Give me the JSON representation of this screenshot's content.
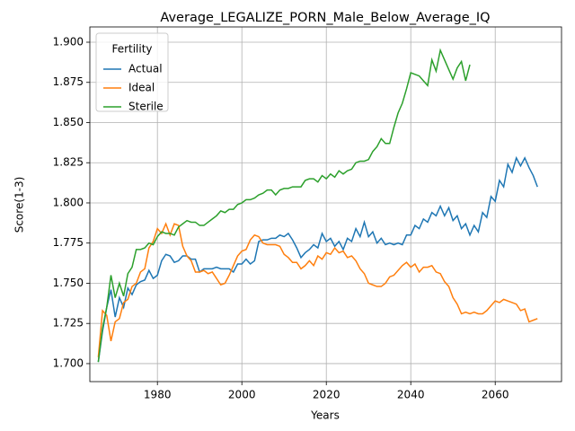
{
  "chart_data": {
    "type": "line",
    "title": "Average_LEGALIZE_PORN_Male_Below_Average_IQ",
    "x_label": "Years",
    "y_label": "Score(1-3)",
    "legend_title": "Fertility",
    "legend_position": "upper left",
    "grid": true,
    "xlim": [
      1964,
      2075.7
    ],
    "ylim": [
      1.6888,
      1.9095
    ],
    "xticks": [
      1980,
      2000,
      2020,
      2040,
      2060
    ],
    "yticks": [
      {
        "value": 1.7,
        "label": "1.700"
      },
      {
        "value": 1.725,
        "label": "1.725"
      },
      {
        "value": 1.75,
        "label": "1.750"
      },
      {
        "value": 1.775,
        "label": "1.775"
      },
      {
        "value": 1.8,
        "label": "1.800"
      },
      {
        "value": 1.825,
        "label": "1.825"
      },
      {
        "value": 1.85,
        "label": "1.850"
      },
      {
        "value": 1.875,
        "label": "1.875"
      },
      {
        "value": 1.9,
        "label": "1.900"
      }
    ],
    "x": [
      1966,
      1967,
      1968,
      1969,
      1970,
      1971,
      1972,
      1973,
      1974,
      1975,
      1976,
      1977,
      1978,
      1979,
      1980,
      1981,
      1982,
      1983,
      1984,
      1985,
      1986,
      1987,
      1988,
      1989,
      1990,
      1991,
      1992,
      1993,
      1994,
      1995,
      1996,
      1997,
      1998,
      1999,
      2000,
      2001,
      2002,
      2003,
      2004,
      2005,
      2006,
      2007,
      2008,
      2009,
      2010,
      2011,
      2012,
      2013,
      2014,
      2015,
      2016,
      2017,
      2018,
      2019,
      2020,
      2021,
      2022,
      2023,
      2024,
      2025,
      2026,
      2027,
      2028,
      2029,
      2030,
      2031,
      2032,
      2033,
      2034,
      2035,
      2036,
      2037,
      2038,
      2039,
      2040,
      2041,
      2042,
      2043,
      2044,
      2045,
      2046,
      2047,
      2048,
      2049,
      2050,
      2051,
      2052,
      2053,
      2054,
      2055,
      2056,
      2057,
      2058,
      2059,
      2060,
      2061,
      2062,
      2063,
      2064,
      2065,
      2066,
      2067,
      2068,
      2069,
      2070
    ],
    "series": [
      {
        "name": "Actual",
        "color": "#1f77b4",
        "values": [
          1.701,
          1.72,
          1.735,
          1.746,
          1.729,
          1.741,
          1.735,
          1.747,
          1.743,
          1.749,
          1.751,
          1.752,
          1.758,
          1.753,
          1.755,
          1.764,
          1.768,
          1.767,
          1.763,
          1.764,
          1.767,
          1.767,
          1.765,
          1.765,
          1.757,
          1.759,
          1.759,
          1.759,
          1.76,
          1.759,
          1.759,
          1.759,
          1.757,
          1.762,
          1.762,
          1.765,
          1.762,
          1.764,
          1.776,
          1.777,
          1.777,
          1.778,
          1.778,
          1.78,
          1.779,
          1.781,
          1.777,
          1.772,
          1.766,
          1.769,
          1.771,
          1.774,
          1.772,
          1.781,
          1.776,
          1.778,
          1.773,
          1.776,
          1.771,
          1.778,
          1.776,
          1.784,
          1.779,
          1.788,
          1.779,
          1.782,
          1.775,
          1.778,
          1.774,
          1.775,
          1.774,
          1.775,
          1.774,
          1.78,
          1.78,
          1.786,
          1.784,
          1.79,
          1.788,
          1.794,
          1.792,
          1.798,
          1.792,
          1.797,
          1.789,
          1.792,
          1.784,
          1.787,
          1.78,
          1.786,
          1.782,
          1.794,
          1.791,
          1.804,
          1.801,
          1.814,
          1.81,
          1.824,
          1.819,
          1.828,
          1.823,
          1.828,
          1.822,
          1.817,
          1.81
        ]
      },
      {
        "name": "Ideal",
        "color": "#ff7f0e",
        "values": [
          1.704,
          1.733,
          1.73,
          1.714,
          1.726,
          1.728,
          1.738,
          1.74,
          1.748,
          1.75,
          1.757,
          1.759,
          1.772,
          1.776,
          1.784,
          1.781,
          1.787,
          1.78,
          1.787,
          1.786,
          1.773,
          1.767,
          1.764,
          1.757,
          1.757,
          1.758,
          1.756,
          1.757,
          1.753,
          1.749,
          1.75,
          1.755,
          1.761,
          1.767,
          1.77,
          1.771,
          1.777,
          1.78,
          1.779,
          1.775,
          1.774,
          1.774,
          1.774,
          1.773,
          1.768,
          1.766,
          1.763,
          1.763,
          1.759,
          1.761,
          1.764,
          1.761,
          1.767,
          1.765,
          1.769,
          1.768,
          1.772,
          1.769,
          1.77,
          1.766,
          1.767,
          1.764,
          1.759,
          1.756,
          1.75,
          1.749,
          1.748,
          1.748,
          1.75,
          1.754,
          1.755,
          1.758,
          1.761,
          1.763,
          1.76,
          1.762,
          1.757,
          1.76,
          1.76,
          1.761,
          1.757,
          1.756,
          1.751,
          1.748,
          1.741,
          1.737,
          1.731,
          1.732,
          1.731,
          1.732,
          1.731,
          1.731,
          1.733,
          1.736,
          1.739,
          1.738,
          1.74,
          1.739,
          1.738,
          1.737,
          1.733,
          1.734,
          1.726,
          1.727,
          1.728
        ]
      },
      {
        "name": "Sterile",
        "color": "#2ca02c",
        "values": [
          1.701,
          1.722,
          1.735,
          1.755,
          1.741,
          1.75,
          1.742,
          1.756,
          1.76,
          1.771,
          1.771,
          1.772,
          1.775,
          1.774,
          1.779,
          1.782,
          1.781,
          1.781,
          1.78,
          1.785,
          1.787,
          1.789,
          1.788,
          1.788,
          1.786,
          1.786,
          1.788,
          1.79,
          1.792,
          1.795,
          1.794,
          1.796,
          1.796,
          1.799,
          1.8,
          1.802,
          1.802,
          1.803,
          1.805,
          1.806,
          1.808,
          1.808,
          1.805,
          1.808,
          1.809,
          1.809,
          1.81,
          1.81,
          1.81,
          1.814,
          1.815,
          1.815,
          1.813,
          1.817,
          1.815,
          1.818,
          1.816,
          1.82,
          1.818,
          1.82,
          1.821,
          1.825,
          1.826,
          1.826,
          1.827,
          1.832,
          1.835,
          1.84,
          1.837,
          1.837,
          1.847,
          1.856,
          1.862,
          1.871,
          1.881,
          1.88,
          1.879,
          1.876,
          1.873,
          1.889,
          1.882,
          1.895,
          1.889,
          1.883,
          1.877,
          1.884,
          1.888,
          1.876,
          1.886,
          null,
          null,
          null,
          null,
          null,
          null,
          null,
          null,
          null,
          null,
          null,
          null,
          null,
          null,
          null,
          null
        ]
      }
    ]
  }
}
